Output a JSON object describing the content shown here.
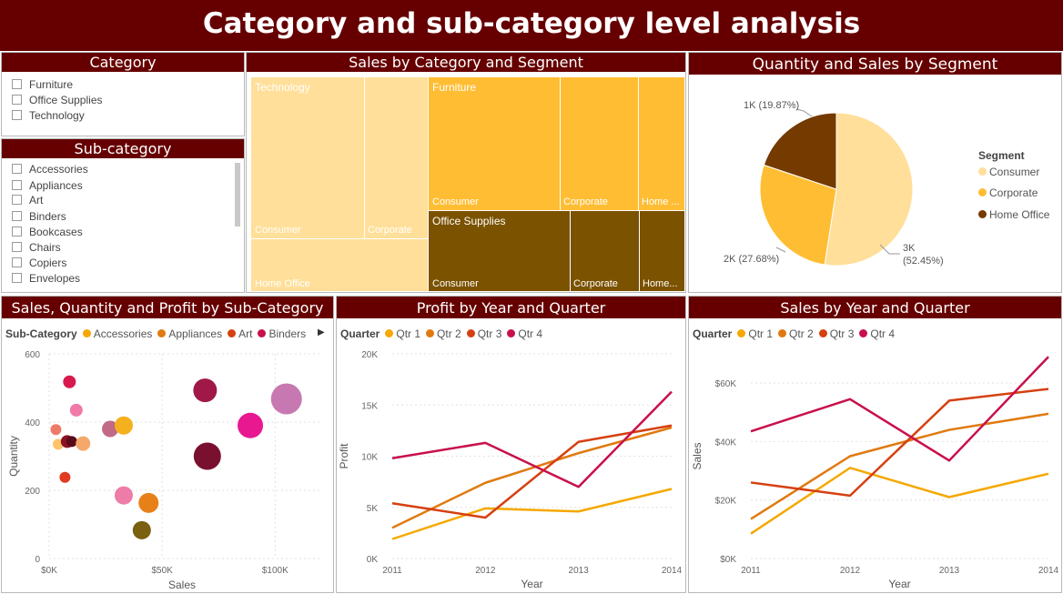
{
  "title": "Category and sub-category level analysis",
  "category_slicer": {
    "title": "Category",
    "items": [
      "Furniture",
      "Office Supplies",
      "Technology"
    ]
  },
  "subcategory_slicer": {
    "title": "Sub-category",
    "items": [
      "Accessories",
      "Appliances",
      "Art",
      "Binders",
      "Bookcases",
      "Chairs",
      "Copiers",
      "Envelopes"
    ]
  },
  "colors": {
    "header": "#660000",
    "light_yellow": "#FFDF99",
    "yellow": "#FFBD33",
    "brown": "#7B5200",
    "dark_brown": "#743A00",
    "qtr1": "#F5A800",
    "qtr2": "#E07A10",
    "qtr3": "#D64010",
    "qtr4": "#C8104A"
  },
  "treemap": {
    "title": "Sales by Category and Segment",
    "groups": [
      {
        "name": "Technology",
        "segments": [
          "Consumer",
          "Corporate",
          "Home Office"
        ]
      },
      {
        "name": "Furniture",
        "segments": [
          "Consumer",
          "Corporate",
          "Home ..."
        ]
      },
      {
        "name": "Office Supplies",
        "segments": [
          "Consumer",
          "Corporate",
          "Home..."
        ]
      }
    ]
  },
  "pie": {
    "title": "Quantity and Sales by Segment",
    "legend_title": "Segment",
    "chart_data": {
      "type": "pie",
      "slices": [
        {
          "name": "Consumer",
          "value": 52.45,
          "label": "3K",
          "label2": "(52.45%)",
          "color": "#FFDF99"
        },
        {
          "name": "Corporate",
          "value": 27.68,
          "label": "2K (27.68%)",
          "color": "#FFBD33"
        },
        {
          "name": "Home Office",
          "value": 19.87,
          "label": "1K (19.87%)",
          "color": "#743A00"
        }
      ]
    }
  },
  "scatter": {
    "title": "Sales, Quantity and Profit by Sub-Category",
    "legend_title": "Sub-Category",
    "legend": [
      {
        "name": "Accessories",
        "color": "#F5A800"
      },
      {
        "name": "Appliances",
        "color": "#E07A10"
      },
      {
        "name": "Art",
        "color": "#D64010"
      },
      {
        "name": "Binders",
        "color": "#C8104A"
      }
    ],
    "chart_data": {
      "type": "scatter",
      "xlabel": "Sales",
      "ylabel": "Quantity",
      "xlim": [
        0,
        120000
      ],
      "ylim": [
        0,
        600
      ],
      "xticks": [
        {
          "v": 0,
          "t": "$0K"
        },
        {
          "v": 50000,
          "t": "$50K"
        },
        {
          "v": 100000,
          "t": "$100K"
        }
      ],
      "yticks": [
        {
          "v": 0,
          "t": "0"
        },
        {
          "v": 200,
          "t": "200"
        },
        {
          "v": 400,
          "t": "400"
        },
        {
          "v": 600,
          "t": "600"
        }
      ],
      "points": [
        {
          "x": 9000,
          "y": 518,
          "s": 7,
          "c": "#D8194E"
        },
        {
          "x": 12000,
          "y": 435,
          "s": 7,
          "c": "#F07AA8"
        },
        {
          "x": 3000,
          "y": 378,
          "s": 6,
          "c": "#EE7A6A"
        },
        {
          "x": 4000,
          "y": 335,
          "s": 6,
          "c": "#FFC36B"
        },
        {
          "x": 8000,
          "y": 343,
          "s": 7,
          "c": "#8A1224"
        },
        {
          "x": 10000,
          "y": 343,
          "s": 6,
          "c": "#5A0A18"
        },
        {
          "x": 15000,
          "y": 337,
          "s": 8,
          "c": "#F4A86A"
        },
        {
          "x": 7000,
          "y": 238,
          "s": 6,
          "c": "#E03A20"
        },
        {
          "x": 27000,
          "y": 380,
          "s": 9,
          "c": "#C06A86"
        },
        {
          "x": 33000,
          "y": 390,
          "s": 10,
          "c": "#F5B01E"
        },
        {
          "x": 33000,
          "y": 185,
          "s": 10,
          "c": "#EE7CA8"
        },
        {
          "x": 44000,
          "y": 163,
          "s": 11,
          "c": "#E8801A"
        },
        {
          "x": 41000,
          "y": 83,
          "s": 10,
          "c": "#7A6010"
        },
        {
          "x": 69000,
          "y": 493,
          "s": 13,
          "c": "#A01848"
        },
        {
          "x": 70000,
          "y": 300,
          "s": 15,
          "c": "#7A1030"
        },
        {
          "x": 89000,
          "y": 390,
          "s": 14,
          "c": "#E81890"
        },
        {
          "x": 105000,
          "y": 468,
          "s": 17,
          "c": "#C878B0"
        }
      ]
    }
  },
  "profit_chart": {
    "title": "Profit by Year and Quarter",
    "legend_title": "Quarter",
    "chart_data": {
      "type": "line",
      "x": [
        "2011",
        "2012",
        "2013",
        "2014"
      ],
      "xlabel": "Year",
      "ylabel": "Profit",
      "ylim": [
        0,
        20000
      ],
      "yticks": [
        {
          "v": 0,
          "t": "0K"
        },
        {
          "v": 5000,
          "t": "5K"
        },
        {
          "v": 10000,
          "t": "10K"
        },
        {
          "v": 15000,
          "t": "15K"
        },
        {
          "v": 20000,
          "t": "20K"
        }
      ],
      "series": [
        {
          "name": "Qtr 1",
          "color": "#F5A800",
          "values": [
            1900,
            4900,
            4600,
            6800
          ]
        },
        {
          "name": "Qtr 2",
          "color": "#E07A10",
          "values": [
            3000,
            7400,
            10300,
            12800
          ]
        },
        {
          "name": "Qtr 3",
          "color": "#D64010",
          "values": [
            5400,
            4000,
            11400,
            13000
          ]
        },
        {
          "name": "Qtr 4",
          "color": "#C8104A",
          "values": [
            9800,
            11300,
            7000,
            16300
          ]
        }
      ]
    }
  },
  "sales_chart": {
    "title": "Sales by Year and Quarter",
    "legend_title": "Quarter",
    "chart_data": {
      "type": "line",
      "x": [
        "2011",
        "2012",
        "2013",
        "2014"
      ],
      "xlabel": "Year",
      "ylabel": "Sales",
      "ylim": [
        0,
        70000
      ],
      "yticks": [
        {
          "v": 0,
          "t": "$0K"
        },
        {
          "v": 20000,
          "t": "$20K"
        },
        {
          "v": 40000,
          "t": "$40K"
        },
        {
          "v": 60000,
          "t": "$60K"
        }
      ],
      "series": [
        {
          "name": "Qtr 1",
          "color": "#F5A800",
          "values": [
            8500,
            31000,
            21000,
            29000
          ]
        },
        {
          "name": "Qtr 2",
          "color": "#E07A10",
          "values": [
            13500,
            35000,
            44000,
            49500
          ]
        },
        {
          "name": "Qtr 3",
          "color": "#D64010",
          "values": [
            26000,
            21500,
            54000,
            58000
          ]
        },
        {
          "name": "Qtr 4",
          "color": "#C8104A",
          "values": [
            43500,
            54500,
            33500,
            69000
          ]
        }
      ]
    }
  }
}
